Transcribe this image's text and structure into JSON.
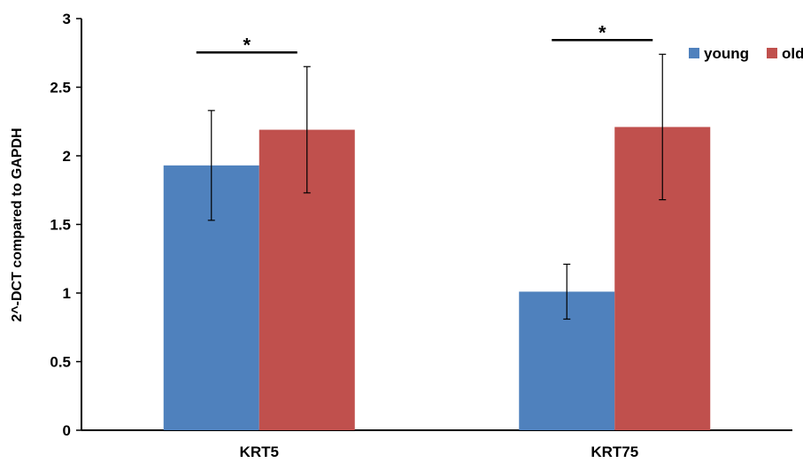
{
  "chart_data": {
    "type": "bar",
    "categories": [
      "KRT5",
      "KRT75"
    ],
    "series": [
      {
        "name": "young",
        "color": "#4F81BD",
        "values": [
          1.93,
          1.01
        ],
        "errors": [
          0.4,
          0.2
        ]
      },
      {
        "name": "old",
        "color": "#C0504D",
        "values": [
          2.19,
          2.21
        ],
        "errors": [
          0.46,
          0.53
        ]
      }
    ],
    "ylabel": "2^-DCT compared to GAPDH",
    "xlabel": "",
    "ylim": [
      0,
      3
    ],
    "yticks": [
      0,
      0.5,
      1,
      1.5,
      2,
      2.5,
      3
    ],
    "ytick_labels": [
      "0",
      "0.5",
      "1",
      "1.5",
      "2",
      "2.5",
      "3"
    ],
    "significance": [
      {
        "category": "KRT5",
        "label": "*"
      },
      {
        "category": "KRT75",
        "label": "*"
      }
    ],
    "legend_position": "top-right",
    "grid": false
  }
}
